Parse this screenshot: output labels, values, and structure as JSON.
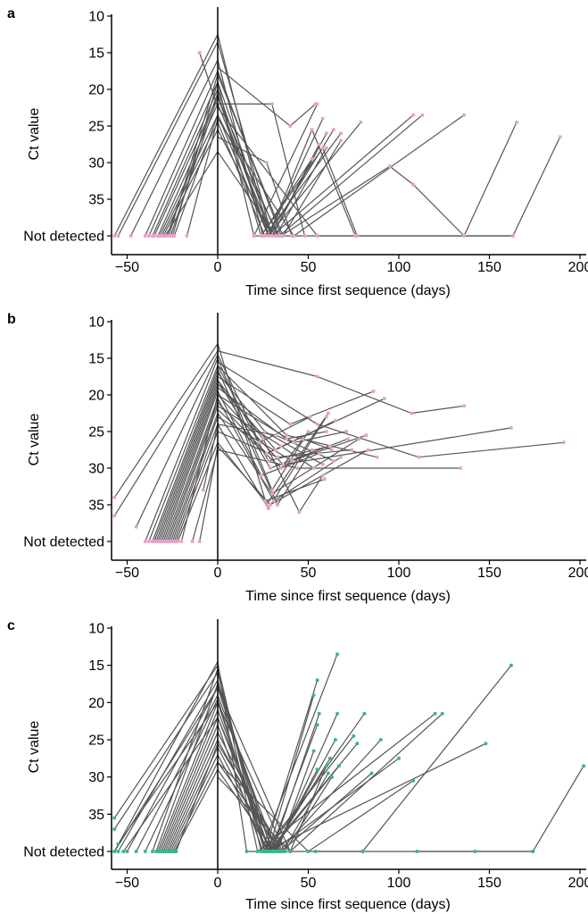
{
  "figure": {
    "colors": {
      "line": "#555555",
      "axis": "#000000",
      "marker_pink": "#e7a2c6",
      "marker_green": "#3cb492"
    }
  },
  "chart_data": [
    {
      "panel": "a",
      "type": "line",
      "xlabel": "Time since first sequence (days)",
      "ylabel": "Ct value",
      "xlim": [
        -57,
        203
      ],
      "ylim": [
        10,
        40
      ],
      "y_inverted": true,
      "xticks": [
        -50,
        0,
        50,
        100,
        150,
        200
      ],
      "yticks": [
        10,
        15,
        20,
        25,
        30,
        35
      ],
      "y_not_detected_label": "Not detected",
      "marker_color": "pink",
      "series": [
        {
          "x": [
            -57,
            0,
            28
          ],
          "y": [
            40,
            12.5,
            40
          ]
        },
        {
          "x": [
            -55,
            0,
            30
          ],
          "y": [
            40,
            13.5,
            40
          ]
        },
        {
          "x": [
            -48,
            0,
            25
          ],
          "y": [
            40,
            16,
            40
          ]
        },
        {
          "x": [
            -40,
            0,
            35
          ],
          "y": [
            40,
            17.5,
            40
          ]
        },
        {
          "x": [
            -38,
            0,
            20,
            55
          ],
          "y": [
            40,
            19,
            40,
            22
          ]
        },
        {
          "x": [
            -36,
            0,
            28,
            58
          ],
          "y": [
            40,
            20,
            40,
            24
          ]
        },
        {
          "x": [
            -35,
            0,
            33
          ],
          "y": [
            40,
            21,
            40
          ]
        },
        {
          "x": [
            -33,
            0,
            30,
            60
          ],
          "y": [
            40,
            22,
            40,
            26
          ]
        },
        {
          "x": [
            -32,
            0,
            28,
            64
          ],
          "y": [
            40,
            23.5,
            40,
            25.5
          ]
        },
        {
          "x": [
            -31,
            0,
            26,
            68
          ],
          "y": [
            40,
            24.5,
            40,
            26
          ]
        },
        {
          "x": [
            -30,
            0,
            30,
            56
          ],
          "y": [
            40,
            25.5,
            40,
            27.5
          ]
        },
        {
          "x": [
            -29,
            0,
            32,
            60
          ],
          "y": [
            40,
            28.5,
            40,
            28
          ]
        },
        {
          "x": [
            -28,
            0,
            24,
            52
          ],
          "y": [
            40,
            20.5,
            40,
            29.5
          ]
        },
        {
          "x": [
            -27,
            0,
            36,
            68
          ],
          "y": [
            40,
            18,
            40,
            27
          ]
        },
        {
          "x": [
            -26,
            0,
            28,
            79
          ],
          "y": [
            40,
            21,
            40,
            24.5
          ]
        },
        {
          "x": [
            -25,
            0,
            30,
            108
          ],
          "y": [
            40,
            19,
            40,
            23.5
          ]
        },
        {
          "x": [
            -24,
            0,
            34,
            113
          ],
          "y": [
            40,
            23.5,
            40,
            23.5
          ]
        },
        {
          "x": [
            -17,
            0,
            42,
            136
          ],
          "y": [
            40,
            24,
            40,
            23.5
          ]
        },
        {
          "x": [
            -10,
            0,
            55,
            163,
            189
          ],
          "y": [
            15,
            22.5,
            40,
            40,
            26.5
          ]
        },
        {
          "x": [
            0,
            40,
            54
          ],
          "y": [
            17,
            25,
            22
          ]
        },
        {
          "x": [
            0,
            30,
            48
          ],
          "y": [
            22,
            22,
            40
          ]
        },
        {
          "x": [
            0,
            27,
            41
          ],
          "y": [
            26.5,
            30,
            40
          ]
        },
        {
          "x": [
            28,
            52,
            76
          ],
          "y": [
            40,
            25.5,
            40
          ]
        },
        {
          "x": [
            35,
            95,
            108
          ],
          "y": [
            40,
            30.5,
            33
          ]
        },
        {
          "x": [
            108,
            136
          ],
          "y": [
            33,
            40
          ]
        },
        {
          "x": [
            136,
            165
          ],
          "y": [
            40,
            24.5
          ]
        },
        {
          "x": [
            24,
            58,
            77
          ],
          "y": [
            40,
            28,
            40
          ]
        },
        {
          "x": [
            20,
            163
          ],
          "y": [
            40,
            40
          ]
        }
      ]
    },
    {
      "panel": "b",
      "type": "line",
      "xlabel": "Time since first sequence (days)",
      "ylabel": "Ct value",
      "xlim": [
        -57,
        203
      ],
      "ylim": [
        10,
        40
      ],
      "y_inverted": true,
      "xticks": [
        -50,
        0,
        50,
        100,
        150,
        200
      ],
      "yticks": [
        10,
        15,
        20,
        25,
        30,
        35
      ],
      "y_not_detected_label": "Not detected",
      "marker_color": "pink",
      "series": [
        {
          "x": [
            -57,
            0,
            27,
            61
          ],
          "y": [
            34,
            13,
            35,
            22.5
          ]
        },
        {
          "x": [
            -57,
            0,
            55,
            107,
            136
          ],
          "y": [
            36.5,
            14,
            17.5,
            22.5,
            21.5
          ]
        },
        {
          "x": [
            -40,
            0,
            30,
            50
          ],
          "y": [
            40,
            15,
            33,
            25
          ]
        },
        {
          "x": [
            -38,
            0,
            28,
            62
          ],
          "y": [
            40,
            16,
            29,
            27
          ]
        },
        {
          "x": [
            -36,
            0,
            33,
            52
          ],
          "y": [
            40,
            16.5,
            35,
            27.5
          ]
        },
        {
          "x": [
            -35,
            0,
            26,
            58
          ],
          "y": [
            40,
            17,
            25,
            29.5
          ]
        },
        {
          "x": [
            -34,
            0,
            40,
            86
          ],
          "y": [
            40,
            17.5,
            24,
            19.5
          ]
        },
        {
          "x": [
            -33,
            0,
            29,
            72
          ],
          "y": [
            40,
            18,
            30,
            26
          ]
        },
        {
          "x": [
            -32,
            0,
            32,
            65
          ],
          "y": [
            40,
            18.5,
            27.5,
            23.5
          ]
        },
        {
          "x": [
            -31,
            0,
            38,
            60
          ],
          "y": [
            40,
            19,
            26,
            25
          ]
        },
        {
          "x": [
            -30,
            0,
            24,
            56
          ],
          "y": [
            40,
            19.5,
            31,
            28
          ]
        },
        {
          "x": [
            -29,
            0,
            31,
            68
          ],
          "y": [
            40,
            20.5,
            34.5,
            28.5
          ]
        },
        {
          "x": [
            -28,
            0,
            27,
            92
          ],
          "y": [
            40,
            21,
            28,
            20.5
          ]
        },
        {
          "x": [
            -27,
            0,
            35,
            53
          ],
          "y": [
            40,
            21.5,
            27,
            30
          ]
        },
        {
          "x": [
            -26,
            0,
            30,
            78
          ],
          "y": [
            40,
            22.5,
            33.5,
            26
          ]
        },
        {
          "x": [
            -25,
            0,
            41,
            82
          ],
          "y": [
            40,
            23,
            29,
            25.5
          ]
        },
        {
          "x": [
            -24,
            0,
            28,
            60
          ],
          "y": [
            40,
            24,
            35.5,
            23
          ]
        },
        {
          "x": [
            -23,
            0,
            33,
            74
          ],
          "y": [
            40,
            25,
            28.5,
            27.5
          ]
        },
        {
          "x": [
            -22,
            0,
            26,
            59
          ],
          "y": [
            40,
            26.5,
            34.5,
            31.5
          ]
        },
        {
          "x": [
            -20,
            0,
            36,
            162
          ],
          "y": [
            40,
            20,
            29.5,
            24.5
          ]
        },
        {
          "x": [
            -14,
            0,
            44,
            134
          ],
          "y": [
            40,
            27.5,
            30,
            30
          ]
        },
        {
          "x": [
            -45,
            0,
            23,
            51
          ],
          "y": [
            38,
            14.5,
            26.5,
            23
          ]
        },
        {
          "x": [
            -10,
            0,
            29,
            83
          ],
          "y": [
            40,
            27,
            35,
            27.5
          ]
        },
        {
          "x": [
            0,
            55,
            111,
            191
          ],
          "y": [
            15.5,
            24,
            28.5,
            26.5
          ]
        },
        {
          "x": [
            0,
            25,
            45,
            58
          ],
          "y": [
            18,
            26,
            36,
            31
          ]
        },
        {
          "x": [
            0,
            38,
            88
          ],
          "y": [
            16,
            25.5,
            28.5
          ]
        },
        {
          "x": [
            0,
            42,
            71
          ],
          "y": [
            20,
            26.5,
            25
          ]
        },
        {
          "x": [
            0,
            35,
            47,
            63
          ],
          "y": [
            22,
            30,
            26,
            27.5
          ]
        },
        {
          "x": [
            -8,
            0,
            32,
            64
          ],
          "y": [
            33,
            24,
            25.5,
            29
          ]
        }
      ]
    },
    {
      "panel": "c",
      "type": "line",
      "xlabel": "Time since first sequence (days)",
      "ylabel": "Ct value",
      "xlim": [
        -57,
        203
      ],
      "ylim": [
        10,
        40
      ],
      "y_inverted": true,
      "xticks": [
        -50,
        0,
        50,
        100,
        150,
        200
      ],
      "yticks": [
        10,
        15,
        20,
        25,
        30,
        35
      ],
      "y_not_detected_label": "Not detected",
      "marker_color": "green",
      "series": [
        {
          "x": [
            -57,
            0,
            24,
            66
          ],
          "y": [
            35.5,
            15,
            40,
            13.5
          ]
        },
        {
          "x": [
            -57,
            0,
            26,
            55
          ],
          "y": [
            37,
            16,
            40,
            17
          ]
        },
        {
          "x": [
            -55,
            0,
            28,
            53
          ],
          "y": [
            40,
            17,
            40,
            19
          ]
        },
        {
          "x": [
            -50,
            0,
            30,
            56
          ],
          "y": [
            40,
            18,
            40,
            21.5
          ]
        },
        {
          "x": [
            -45,
            0,
            32,
            66
          ],
          "y": [
            40,
            19,
            40,
            21.5
          ]
        },
        {
          "x": [
            -33,
            0,
            27,
            81
          ],
          "y": [
            40,
            20,
            40,
            21.5
          ]
        },
        {
          "x": [
            -32,
            0,
            29,
            55
          ],
          "y": [
            40,
            21,
            40,
            23
          ]
        },
        {
          "x": [
            -31,
            0,
            31,
            65
          ],
          "y": [
            40,
            22,
            40,
            25
          ]
        },
        {
          "x": [
            -30,
            0,
            25,
            75
          ],
          "y": [
            40,
            23,
            40,
            24.5
          ]
        },
        {
          "x": [
            -29,
            0,
            34,
            90
          ],
          "y": [
            40,
            24,
            40,
            25
          ]
        },
        {
          "x": [
            -28,
            0,
            33,
            53
          ],
          "y": [
            40,
            25,
            40,
            26.5
          ]
        },
        {
          "x": [
            -27,
            0,
            30,
            62
          ],
          "y": [
            40,
            26,
            40,
            27.5
          ]
        },
        {
          "x": [
            -26,
            0,
            28,
            77
          ],
          "y": [
            40,
            27,
            40,
            25.5
          ]
        },
        {
          "x": [
            -25,
            0,
            35,
            85
          ],
          "y": [
            40,
            28,
            40,
            29.5
          ]
        },
        {
          "x": [
            -24,
            0,
            31,
            55
          ],
          "y": [
            40,
            29,
            40,
            29
          ]
        },
        {
          "x": [
            -57,
            0,
            40,
            60
          ],
          "y": [
            40,
            18,
            40,
            28.5
          ]
        },
        {
          "x": [
            -36,
            0,
            22,
            120
          ],
          "y": [
            40,
            15.5,
            40,
            21.5
          ]
        },
        {
          "x": [
            -34,
            0,
            30,
            100
          ],
          "y": [
            40,
            17.5,
            40,
            27.5
          ]
        },
        {
          "x": [
            -40,
            0,
            26,
            148
          ],
          "y": [
            40,
            19.5,
            40,
            25.5
          ]
        },
        {
          "x": [
            -55,
            0,
            37,
            63
          ],
          "y": [
            39,
            20,
            40,
            30
          ]
        },
        {
          "x": [
            -52,
            0,
            29,
            67
          ],
          "y": [
            40,
            22,
            40,
            28.5
          ]
        },
        {
          "x": [
            -23,
            0,
            36,
            61
          ],
          "y": [
            40,
            25.5,
            40,
            29.5
          ]
        },
        {
          "x": [
            0,
            50,
            108
          ],
          "y": [
            28,
            40,
            30.5
          ]
        },
        {
          "x": [
            0,
            40,
            124
          ],
          "y": [
            30,
            40,
            21.5
          ]
        },
        {
          "x": [
            54,
            80,
            162
          ],
          "y": [
            40,
            40,
            15
          ]
        },
        {
          "x": [
            -57,
            0,
            16,
            174,
            202
          ],
          "y": [
            40,
            14.5,
            40,
            40,
            28.5
          ]
        },
        {
          "x": [
            110,
            142,
            174
          ],
          "y": [
            40,
            40,
            40
          ]
        }
      ]
    }
  ]
}
